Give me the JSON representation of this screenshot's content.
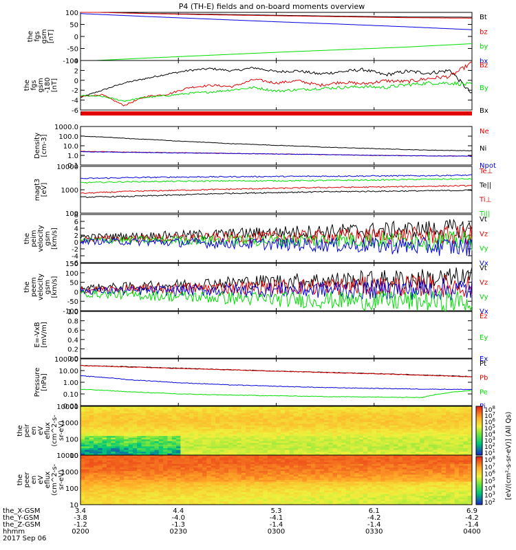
{
  "title": "P4 (TH-E) fields and on-board moments overview",
  "colors": {
    "black": "#000000",
    "red": "#e00000",
    "blue": "#0000dd",
    "green": "#00dd00"
  },
  "chart_data": [
    {
      "type": "line",
      "name": "fgs",
      "ylabel": [
        "the",
        "fgs",
        "gsm",
        "[nT]"
      ],
      "yticks": [
        "100",
        "50",
        "0",
        "-50",
        "-100"
      ],
      "ylim": [
        -100,
        100
      ],
      "legend": [
        {
          "label": "Bt",
          "color": "black"
        },
        {
          "label": "bz",
          "color": "red"
        },
        {
          "label": "by",
          "color": "green"
        },
        {
          "label": "bx",
          "color": "blue"
        }
      ],
      "series": [
        {
          "color": "black",
          "values": [
            103,
            96,
            92,
            88,
            84,
            81,
            80
          ]
        },
        {
          "color": "red",
          "values": [
            102,
            95,
            90,
            86,
            82,
            78,
            76
          ]
        },
        {
          "color": "blue",
          "values": [
            95,
            83,
            72,
            61,
            51,
            40,
            28
          ]
        },
        {
          "color": "green",
          "values": [
            -103,
            -90,
            -78,
            -66,
            -55,
            -44,
            -30
          ]
        }
      ]
    },
    {
      "type": "line",
      "name": "fgs-dsl",
      "ylabel": [
        "the",
        "fgs",
        "gsm",
        "-180",
        "[nT]"
      ],
      "yticks": [
        "4",
        "2",
        "0",
        "-2",
        "-4",
        "-6"
      ],
      "ylim": [
        -7,
        4
      ],
      "legend": [
        {
          "label": "Bz",
          "color": "red"
        },
        {
          "label": "By",
          "color": "green"
        },
        {
          "label": "Bx",
          "color": "black"
        }
      ],
      "series": [
        {
          "color": "black",
          "values": [
            -4.2,
            -2.6,
            -1.0,
            0.0,
            1.0,
            1.8,
            2.2,
            1.7,
            2.4,
            1.5,
            1.7,
            1.0,
            1.5,
            2.0,
            0.8,
            1.6,
            1.2,
            1.8,
            -3.5
          ]
        },
        {
          "color": "red",
          "values": [
            -4.0,
            -3.6,
            -6.0,
            -4.0,
            -3.5,
            -2.0,
            -1.5,
            -1.8,
            -0.2,
            -1.0,
            -0.5,
            -1.5,
            -0.8,
            -1.2,
            -0.5,
            -0.7,
            0.0,
            0.5,
            3.5
          ]
        },
        {
          "color": "green",
          "values": [
            -3.8,
            -4.0,
            -5.0,
            -4.2,
            -3.8,
            -3.3,
            -3.0,
            -2.5,
            -2.0,
            -2.8,
            -2.5,
            -2.2,
            -2.0,
            -1.8,
            -2.0,
            -1.4,
            -1.0,
            -1.0,
            -1.4
          ]
        }
      ]
    },
    {
      "type": "line",
      "name": "density",
      "log": true,
      "ylabel": [
        "Density",
        "[cm-3]"
      ],
      "yticks": [
        "1000.0",
        "100.0",
        "10.0",
        "1.0",
        "0.1"
      ],
      "ylim": [
        0.1,
        1000
      ],
      "legend": [
        {
          "label": "Ne",
          "color": "red"
        },
        {
          "label": "Ni",
          "color": "black"
        },
        {
          "label": "Npot",
          "color": "blue"
        }
      ],
      "series": [
        {
          "color": "black",
          "values": [
            100,
            55,
            30,
            17,
            11,
            7,
            5,
            3.6,
            3.0
          ]
        },
        {
          "color": "red",
          "values": [
            2.6,
            2.2,
            1.9,
            1.6,
            1.4,
            1.2,
            1.0,
            0.9,
            0.85
          ]
        },
        {
          "color": "blue",
          "values": [
            2.4,
            2.1,
            1.8,
            1.6,
            1.4,
            1.2,
            1.0,
            0.9,
            0.82
          ]
        }
      ]
    },
    {
      "type": "line",
      "name": "temperature",
      "log": true,
      "ylabel": [
        "magt3",
        "[eV]"
      ],
      "yticks": [
        "10000",
        "1000",
        "100"
      ],
      "ylim": [
        100,
        10000
      ],
      "legend": [
        {
          "label": "Te⊥",
          "color": "red"
        },
        {
          "label": "Te||",
          "color": "black"
        },
        {
          "label": "Ti⊥",
          "color": "red"
        },
        {
          "label": "Ti||",
          "color": "green"
        }
      ],
      "series": [
        {
          "color": "blue",
          "values": [
            3000,
            3300,
            3500,
            3600,
            3700,
            3800,
            3900,
            4000,
            4200
          ]
        },
        {
          "color": "green",
          "values": [
            2000,
            2200,
            2300,
            2400,
            2400,
            2500,
            2600,
            2800,
            2900
          ]
        },
        {
          "color": "red",
          "values": [
            700,
            850,
            950,
            1050,
            1150,
            1250,
            1300,
            1400,
            1500
          ]
        },
        {
          "color": "black",
          "values": [
            480,
            520,
            600,
            700,
            760,
            820,
            860,
            900,
            950
          ]
        }
      ]
    },
    {
      "type": "line",
      "name": "peim-velocity",
      "ylabel": [
        "the",
        "peim",
        "velocity",
        "gsm",
        "[km/s]"
      ],
      "yticks": [
        "8",
        "6",
        "4",
        "2",
        "0",
        "-2",
        "-4",
        "-6"
      ],
      "ylim": [
        -6,
        8
      ],
      "legend": [
        {
          "label": "Vt",
          "color": "black"
        },
        {
          "label": "Vz",
          "color": "red"
        },
        {
          "label": "Vy",
          "color": "green"
        },
        {
          "label": "Vx",
          "color": "blue"
        }
      ],
      "series": [
        {
          "color": "black",
          "values": [
            1.5,
            1.8,
            2.2,
            2.8,
            3.2,
            3.6,
            4.0
          ]
        },
        {
          "color": "red",
          "values": [
            0.8,
            1.0,
            1.2,
            1.4,
            1.6,
            1.8,
            2.0
          ]
        },
        {
          "color": "green",
          "values": [
            0.5,
            0.6,
            0.5,
            0.4,
            0.6,
            0.4,
            0.3
          ]
        },
        {
          "color": "blue",
          "values": [
            0.2,
            0.0,
            -0.3,
            -0.6,
            -0.9,
            -1.2,
            -1.5
          ]
        }
      ]
    },
    {
      "type": "line",
      "name": "peem-velocity",
      "ylabel": [
        "the",
        "peem",
        "velocity",
        "gsm",
        "[km/s]"
      ],
      "yticks": [
        "150",
        "100",
        "50",
        "0",
        "-50",
        "-100"
      ],
      "ylim": [
        -100,
        150
      ],
      "legend": [
        {
          "label": "Vt",
          "color": "black"
        },
        {
          "label": "Vz",
          "color": "red"
        },
        {
          "label": "Vy",
          "color": "green"
        },
        {
          "label": "Vx",
          "color": "blue"
        }
      ],
      "series": [
        {
          "color": "black",
          "values": [
            20,
            30,
            45,
            55,
            60,
            65,
            70
          ]
        },
        {
          "color": "red",
          "values": [
            10,
            15,
            20,
            25,
            28,
            30,
            32
          ]
        },
        {
          "color": "blue",
          "values": [
            5,
            5,
            8,
            10,
            10,
            12,
            12
          ]
        },
        {
          "color": "green",
          "values": [
            -10,
            -20,
            -30,
            -40,
            -45,
            -50,
            -55
          ]
        }
      ]
    },
    {
      "type": "line",
      "name": "efield",
      "ylabel": [
        "E=-VxB",
        "[mV/m]"
      ],
      "yticks": [
        "1.0",
        "0.8",
        "0.6",
        "0.4",
        "0.2",
        "0.0"
      ],
      "ylim": [
        0,
        1
      ],
      "legend": [
        {
          "label": "Ez",
          "color": "red"
        },
        {
          "label": "Ey",
          "color": "green"
        },
        {
          "label": "Ex",
          "color": "blue"
        }
      ],
      "series": []
    },
    {
      "type": "line",
      "name": "pressure",
      "log": true,
      "ylabel": [
        "Pressure",
        "[nPa]"
      ],
      "yticks": [
        "100.00",
        "10.00",
        "1.00",
        "0.10",
        "0.01"
      ],
      "ylim": [
        0.01,
        100
      ],
      "legend": [
        {
          "label": "Pt",
          "color": "black"
        },
        {
          "label": "Pb",
          "color": "red"
        },
        {
          "label": "Pe",
          "color": "green"
        },
        {
          "label": "Pi",
          "color": "blue"
        }
      ],
      "series": [
        {
          "color": "black",
          "values": [
            27,
            21,
            16,
            12,
            9,
            7,
            5.5,
            4.2,
            3.0
          ]
        },
        {
          "color": "red",
          "values": [
            26,
            20,
            15,
            11.5,
            8.8,
            6.8,
            5.3,
            4.0,
            2.9
          ]
        },
        {
          "color": "blue",
          "values": [
            3.5,
            1.6,
            0.9,
            0.6,
            0.45,
            0.35,
            0.3,
            0.26,
            0.24
          ]
        },
        {
          "color": "green",
          "values": [
            0.25,
            0.15,
            0.1,
            0.08,
            0.07,
            0.06,
            0.055,
            0.05,
            0.2
          ]
        }
      ]
    },
    {
      "type": "heatmap",
      "name": "peir",
      "ylabel": [
        "the",
        "peir",
        "en",
        "eV",
        "eflux",
        "(cm^2-s-",
        "sr-eV)"
      ],
      "yticks": [
        "10000",
        "1000",
        "100",
        "10"
      ]
    },
    {
      "type": "heatmap",
      "name": "peer",
      "ylabel": [
        "the",
        "peer",
        "en",
        "eV",
        "eflux",
        "(cm^2-s-",
        "sr-eV)"
      ],
      "yticks": [
        "10000",
        "1000",
        "100",
        "10"
      ]
    }
  ],
  "colorbar_top": {
    "ticks": [
      "10^8",
      "10^7",
      "10^6",
      "10^5",
      "10^4",
      "10^3",
      "10^2",
      "10^1"
    ]
  },
  "colorbar_bottom": {
    "ticks": [
      "10^8",
      "10^7",
      "10^6",
      "10^5",
      "10^4",
      "10^3",
      "10^2"
    ]
  },
  "colorbar_label": "[eV/(cm²-s-sr-eV)] (All Qs)",
  "xaxis": {
    "rows": [
      {
        "label": "the_X-GSM",
        "values": [
          "3.4",
          "4.4",
          "5.3",
          "6.1",
          "6.9"
        ]
      },
      {
        "label": "the_Y-GSM",
        "values": [
          "-3.8",
          "-4.0",
          "-4.1",
          "-4.2",
          "-4.2"
        ]
      },
      {
        "label": "the_Z-GSM",
        "values": [
          "-1.2",
          "-1.3",
          "-1.4",
          "-1.4",
          "-1.4"
        ]
      },
      {
        "label": "hhmm",
        "values": [
          "0200",
          "0230",
          "0300",
          "0330",
          "0400"
        ]
      }
    ],
    "date": "2017 Sep 06"
  }
}
